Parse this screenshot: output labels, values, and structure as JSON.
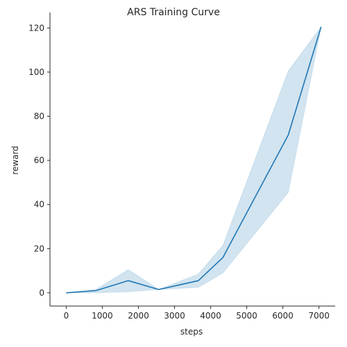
{
  "chart_data": {
    "type": "line",
    "title": "ARS Training Curve",
    "xlabel": "steps",
    "ylabel": "reward",
    "xlim": [
      -450,
      7450
    ],
    "ylim": [
      -6,
      127
    ],
    "xticks": [
      0,
      1000,
      2000,
      3000,
      4000,
      5000,
      6000,
      7000
    ],
    "yticks": [
      0,
      20,
      40,
      60,
      80,
      100,
      120
    ],
    "grid": false,
    "colors": {
      "line": "#1f77b4",
      "band": "#1f77b4",
      "axis": "#262626"
    },
    "series": [
      {
        "x": [
          0,
          820,
          1720,
          2560,
          3660,
          4340,
          6150,
          7060
        ],
        "y": [
          0,
          1,
          5.5,
          1.5,
          5.5,
          16,
          71.5,
          120.5
        ],
        "lower": [
          0,
          0,
          0.5,
          1.5,
          2.5,
          9,
          45.5,
          120.5
        ],
        "upper": [
          0,
          1.5,
          10.5,
          1.5,
          8.5,
          21.5,
          100.5,
          120.5
        ]
      }
    ]
  }
}
